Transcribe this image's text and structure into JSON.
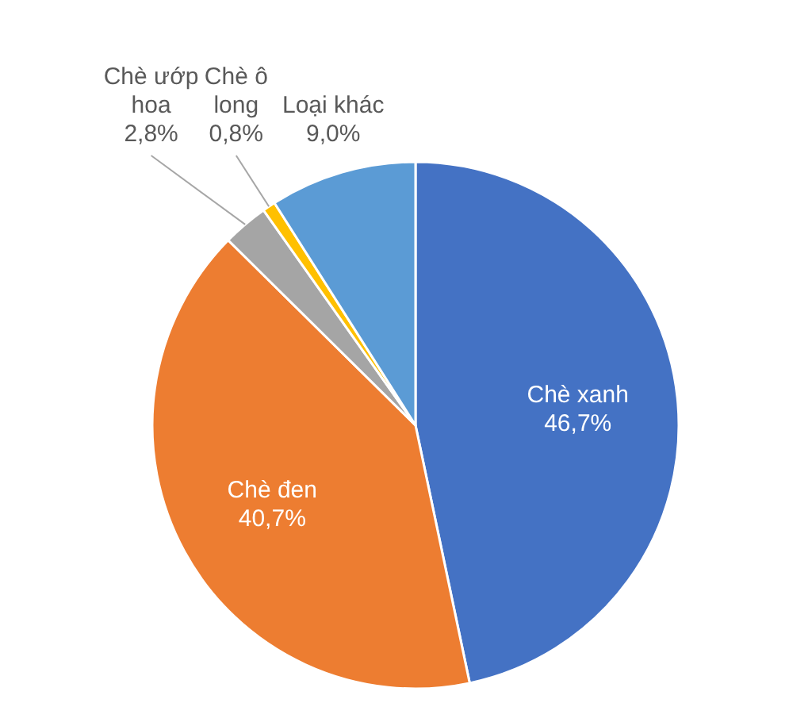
{
  "chart_data": {
    "type": "pie",
    "categories": [
      "Chè xanh",
      "Chè đen",
      "Chè ướp hoa",
      "Chè ô long",
      "Loại khác"
    ],
    "values": [
      46.7,
      40.7,
      2.8,
      0.8,
      9.0
    ],
    "colors": [
      "#4472c4",
      "#ed7d31",
      "#a5a5a5",
      "#ffc000",
      "#5b9bd5"
    ],
    "value_labels": [
      "46,7%",
      "40,7%",
      "2,8%",
      "0,8%",
      "9,0%"
    ]
  }
}
